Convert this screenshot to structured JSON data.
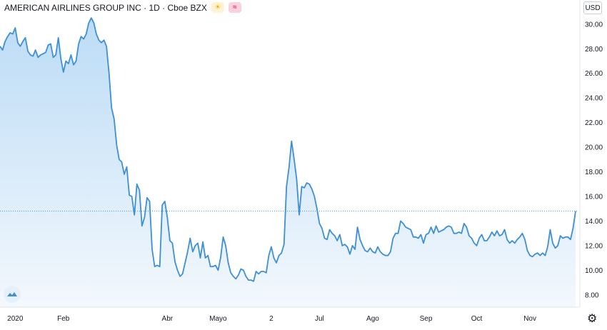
{
  "header": {
    "title": "AMERICAN AIRLINES GROUP INC · 1D · Cboe BZX",
    "currency": "USD",
    "icons": [
      "sun-icon",
      "wave-icon"
    ]
  },
  "colors": {
    "line": "#3d8fd6",
    "fill_top": "#bcdcf6",
    "fill_bottom": "#f3f8fd",
    "current_price_line": "#3d8fd6",
    "grid": "#e8eaed",
    "axis_text": "#131722"
  },
  "chart_data": {
    "type": "area",
    "title": "AMERICAN AIRLINES GROUP INC · 1D · Cboe BZX",
    "xlabel": "",
    "ylabel": "",
    "ylim": [
      7.0,
      31.5
    ],
    "yticks": [
      "30.00",
      "28.00",
      "26.00",
      "24.00",
      "22.00",
      "20.00",
      "18.00",
      "16.00",
      "14.00",
      "12.00",
      "10.00",
      "8.00"
    ],
    "x_tick_labels": [
      {
        "label": "2020",
        "index": 6
      },
      {
        "label": "Feb",
        "index": 25
      },
      {
        "label": "Abr",
        "index": 66
      },
      {
        "label": "Mayo",
        "index": 86
      },
      {
        "label": "2",
        "index": 107
      },
      {
        "label": "Jul",
        "index": 126
      },
      {
        "label": "Ago",
        "index": 147
      },
      {
        "label": "Sep",
        "index": 168
      },
      {
        "label": "Oct",
        "index": 188
      },
      {
        "label": "Nov",
        "index": 209
      }
    ],
    "current_value": 14.8,
    "grid": false,
    "series": [
      {
        "values": [
          28.2,
          27.9,
          28.6,
          29.0,
          29.3,
          29.2,
          29.7,
          28.5,
          28.2,
          28.6,
          28.9,
          27.8,
          27.5,
          27.4,
          27.9,
          27.3,
          27.5,
          27.6,
          27.7,
          28.3,
          28.4,
          27.3,
          27.5,
          28.9,
          27.2,
          26.1,
          27.0,
          26.8,
          27.5,
          26.7,
          27.0,
          28.4,
          29.0,
          28.8,
          29.2,
          30.1,
          30.5,
          30.1,
          29.2,
          28.7,
          28.5,
          28.7,
          28.2,
          26.0,
          23.2,
          22.3,
          20.2,
          19.0,
          18.8,
          17.8,
          18.4,
          16.1,
          16.0,
          14.5,
          17.0,
          16.5,
          13.6,
          14.3,
          15.9,
          15.6,
          11.7,
          10.3,
          10.4,
          10.3,
          15.3,
          15.6,
          14.3,
          12.4,
          12.2,
          10.7,
          10.0,
          9.5,
          9.7,
          10.6,
          11.5,
          12.6,
          11.5,
          12.0,
          12.2,
          11.0,
          12.3,
          11.0,
          11.2,
          10.3,
          10.3,
          10.4,
          10.0,
          11.0,
          12.7,
          12.0,
          10.6,
          9.8,
          9.5,
          9.3,
          9.6,
          10.1,
          10.0,
          9.5,
          9.2,
          9.2,
          9.1,
          9.9,
          9.7,
          9.9,
          9.9,
          9.8,
          11.2,
          11.9,
          11.0,
          10.6,
          11.2,
          11.4,
          12.1,
          16.8,
          18.4,
          20.5,
          19.0,
          17.4,
          14.5,
          16.8,
          16.7,
          17.1,
          17.0,
          16.6,
          16.0,
          15.0,
          13.8,
          13.4,
          12.6,
          12.5,
          13.3,
          13.0,
          12.8,
          12.4,
          12.9,
          12.0,
          12.1,
          11.9,
          11.3,
          12.0,
          11.7,
          13.5,
          12.5,
          12.0,
          11.6,
          11.5,
          11.8,
          11.5,
          11.4,
          11.9,
          11.5,
          11.3,
          11.2,
          11.2,
          11.5,
          12.6,
          13.0,
          13.0,
          14.0,
          13.8,
          13.5,
          13.4,
          13.3,
          12.7,
          12.7,
          12.6,
          12.9,
          12.2,
          12.9,
          13.0,
          13.5,
          13.0,
          13.6,
          13.1,
          13.2,
          13.3,
          13.5,
          13.6,
          13.5,
          13.0,
          13.0,
          13.1,
          13.0,
          13.8,
          13.5,
          12.8,
          12.6,
          12.2,
          12.0,
          12.6,
          12.9,
          12.4,
          12.4,
          12.7,
          13.1,
          12.8,
          13.2,
          12.8,
          12.9,
          13.3,
          12.5,
          12.2,
          12.4,
          12.2,
          12.5,
          12.7,
          13.0,
          12.5,
          11.6,
          11.2,
          11.1,
          11.3,
          11.4,
          11.2,
          11.4,
          11.2,
          11.9,
          13.3,
          12.2,
          11.8,
          12.0,
          12.8,
          12.6,
          12.7,
          12.7,
          12.5,
          13.4,
          14.8
        ]
      }
    ]
  }
}
